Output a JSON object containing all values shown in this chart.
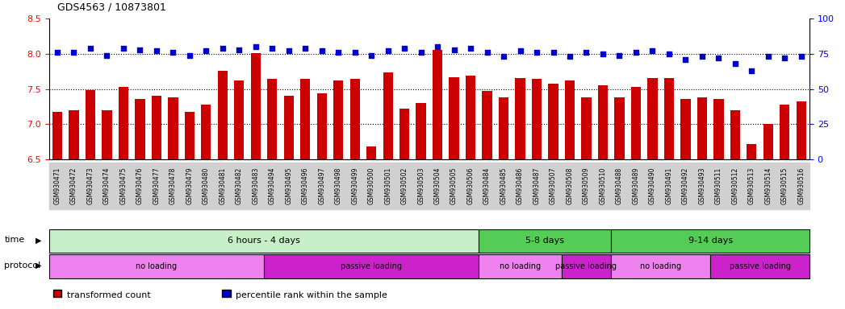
{
  "title": "GDS4563 / 10873801",
  "ylim": [
    6.5,
    8.5
  ],
  "yticks_left": [
    6.5,
    7.0,
    7.5,
    8.0,
    8.5
  ],
  "yticks_right": [
    0,
    25,
    50,
    75,
    100
  ],
  "bar_color": "#cc0000",
  "dot_color": "#0000cc",
  "bar_width": 0.6,
  "samples": [
    "GSM930471",
    "GSM930472",
    "GSM930473",
    "GSM930474",
    "GSM930475",
    "GSM930476",
    "GSM930477",
    "GSM930478",
    "GSM930479",
    "GSM930480",
    "GSM930481",
    "GSM930482",
    "GSM930483",
    "GSM930494",
    "GSM930495",
    "GSM930496",
    "GSM930497",
    "GSM930498",
    "GSM930499",
    "GSM930500",
    "GSM930501",
    "GSM930502",
    "GSM930503",
    "GSM930504",
    "GSM930505",
    "GSM930506",
    "GSM930484",
    "GSM930485",
    "GSM930486",
    "GSM930487",
    "GSM930507",
    "GSM930508",
    "GSM930509",
    "GSM930510",
    "GSM930488",
    "GSM930489",
    "GSM930490",
    "GSM930491",
    "GSM930492",
    "GSM930493",
    "GSM930511",
    "GSM930512",
    "GSM930513",
    "GSM930514",
    "GSM930515",
    "GSM930516"
  ],
  "bar_values": [
    7.18,
    7.2,
    7.48,
    7.2,
    7.53,
    7.36,
    7.4,
    7.38,
    7.18,
    7.28,
    7.76,
    7.62,
    8.01,
    7.64,
    7.4,
    7.64,
    7.44,
    7.62,
    7.64,
    6.68,
    7.74,
    7.22,
    7.3,
    8.05,
    7.67,
    7.69,
    7.47,
    7.38,
    7.65,
    7.64,
    7.58,
    7.62,
    7.38,
    7.55,
    7.38,
    7.53,
    7.65,
    7.65,
    7.36,
    7.38,
    7.36,
    7.2,
    6.72,
    7.0,
    7.28,
    7.32
  ],
  "percentile_values": [
    76,
    76,
    79,
    74,
    79,
    78,
    77,
    76,
    74,
    77,
    79,
    78,
    80,
    79,
    77,
    79,
    77,
    76,
    76,
    74,
    77,
    79,
    76,
    80,
    78,
    79,
    76,
    73,
    77,
    76,
    76,
    73,
    76,
    75,
    74,
    76,
    77,
    75,
    71,
    73,
    72,
    68,
    63,
    73,
    72,
    73
  ],
  "time_groups": [
    {
      "label": "6 hours - 4 days",
      "start": 0,
      "end": 26,
      "color": "#c8f0c8"
    },
    {
      "label": "5-8 days",
      "start": 26,
      "end": 34,
      "color": "#55cc55"
    },
    {
      "label": "9-14 days",
      "start": 34,
      "end": 46,
      "color": "#55cc55"
    }
  ],
  "protocol_groups": [
    {
      "label": "no loading",
      "start": 0,
      "end": 13,
      "color": "#ee82ee"
    },
    {
      "label": "passive loading",
      "start": 13,
      "end": 26,
      "color": "#cc22cc"
    },
    {
      "label": "no loading",
      "start": 26,
      "end": 31,
      "color": "#ee82ee"
    },
    {
      "label": "passive loading",
      "start": 31,
      "end": 34,
      "color": "#cc22cc"
    },
    {
      "label": "no loading",
      "start": 34,
      "end": 40,
      "color": "#ee82ee"
    },
    {
      "label": "passive loading",
      "start": 40,
      "end": 46,
      "color": "#cc22cc"
    }
  ],
  "legend_bar_label": "transformed count",
  "legend_dot_label": "percentile rank within the sample",
  "legend_bar_color": "#cc0000",
  "legend_dot_color": "#0000cc",
  "xlabel_bg_color": "#d0d0d0",
  "grid_dotted_color": "black",
  "separator_color": "black"
}
